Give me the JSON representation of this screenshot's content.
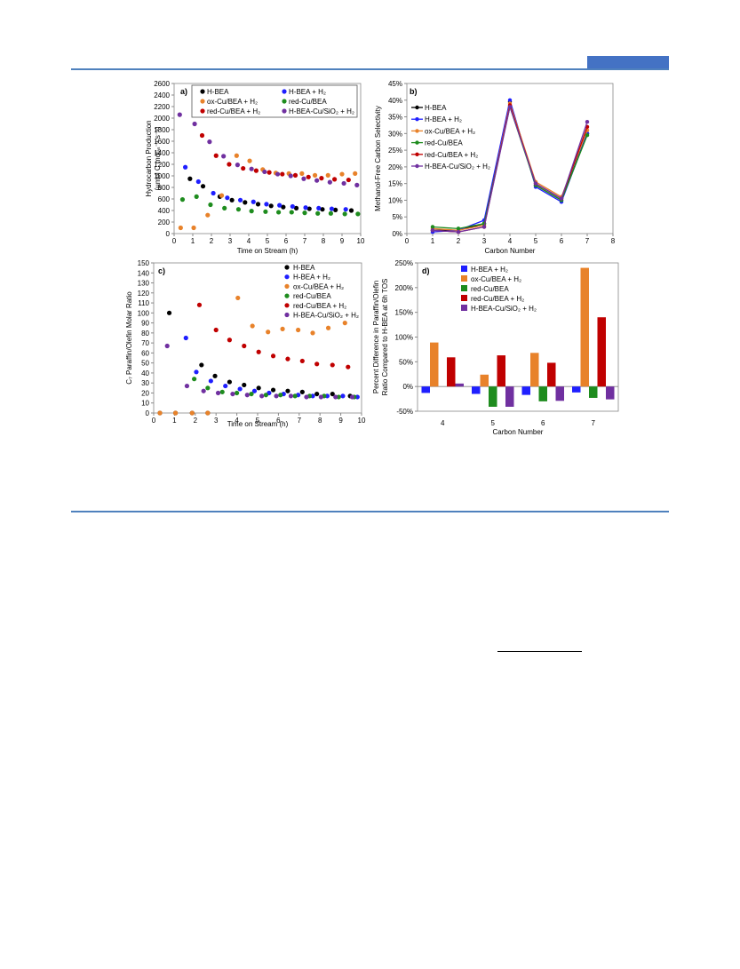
{
  "colors": {
    "H-BEA": "#000000",
    "H-BEA + H2": "#1f1fff",
    "ox-Cu/BEA + H2": "#e8822a",
    "red-Cu/BEA": "#1e8c1e",
    "red-Cu/BEA + H2": "#c00000",
    "H-BEA-Cu/SiO2 + H2": "#7030a0",
    "rule": "#4f81bd",
    "header_block": "#4472c4"
  },
  "legend_labels": {
    "hbea": "H-BEA",
    "hbea_h2": "H-BEA + H₂",
    "ox_h2": "ox-Cu/BEA + H₂",
    "red": "red-Cu/BEA",
    "red_h2": "red-Cu/BEA + H₂",
    "sio2_h2": "H-BEA-Cu/SiO₂ + H₂"
  },
  "chart_data": [
    {
      "panel": "a)",
      "type": "scatter",
      "xlabel": "Time on Stream (h)",
      "ylabel_line1": "Hydrocarbon Production",
      "ylabel_line2": "(µmol C molₐₛ⁻¹ s⁻¹)",
      "xlim": [
        0,
        10
      ],
      "ylim": [
        0,
        2600
      ],
      "xticks": [
        0,
        1,
        2,
        3,
        4,
        5,
        6,
        7,
        8,
        9,
        10
      ],
      "yticks": [
        0,
        200,
        400,
        600,
        800,
        1000,
        1200,
        1400,
        1600,
        1800,
        2000,
        2200,
        2400,
        2600
      ],
      "legend": "top, two columns, boxed",
      "series": [
        {
          "key": "hbea",
          "name": "H-BEA",
          "points": [
            [
              0.85,
              950
            ],
            [
              1.55,
              820
            ],
            [
              2.45,
              640
            ],
            [
              3.1,
              580
            ],
            [
              3.8,
              540
            ],
            [
              4.5,
              510
            ],
            [
              5.2,
              480
            ],
            [
              5.85,
              460
            ],
            [
              6.55,
              440
            ],
            [
              7.25,
              430
            ],
            [
              7.95,
              420
            ],
            [
              8.65,
              410
            ],
            [
              9.5,
              400
            ]
          ]
        },
        {
          "key": "hbea_h2",
          "name": "H-BEA + H₂",
          "points": [
            [
              0.6,
              1150
            ],
            [
              1.3,
              900
            ],
            [
              2.1,
              700
            ],
            [
              2.85,
              620
            ],
            [
              3.55,
              580
            ],
            [
              4.25,
              550
            ],
            [
              4.95,
              510
            ],
            [
              5.65,
              490
            ],
            [
              6.35,
              470
            ],
            [
              7.05,
              450
            ],
            [
              7.75,
              440
            ],
            [
              8.45,
              430
            ],
            [
              9.2,
              420
            ]
          ]
        },
        {
          "key": "ox_h2",
          "name": "ox-Cu/BEA + H₂",
          "points": [
            [
              0.35,
              100
            ],
            [
              1.05,
              100
            ],
            [
              1.8,
              320
            ],
            [
              2.55,
              660
            ],
            [
              3.35,
              1350
            ],
            [
              4.05,
              1260
            ],
            [
              4.75,
              1110
            ],
            [
              5.45,
              1050
            ],
            [
              6.15,
              1040
            ],
            [
              6.85,
              1040
            ],
            [
              7.55,
              1010
            ],
            [
              8.25,
              1010
            ],
            [
              9.0,
              1030
            ],
            [
              9.7,
              1040
            ]
          ]
        },
        {
          "key": "red",
          "name": "red-Cu/BEA",
          "points": [
            [
              0.45,
              590
            ],
            [
              1.2,
              640
            ],
            [
              1.95,
              500
            ],
            [
              2.7,
              440
            ],
            [
              3.45,
              420
            ],
            [
              4.15,
              390
            ],
            [
              4.9,
              380
            ],
            [
              5.6,
              370
            ],
            [
              6.3,
              370
            ],
            [
              7.0,
              360
            ],
            [
              7.7,
              350
            ],
            [
              8.4,
              350
            ],
            [
              9.15,
              340
            ],
            [
              9.85,
              340
            ]
          ]
        },
        {
          "key": "red_h2",
          "name": "red-Cu/BEA + H₂",
          "points": [
            [
              1.5,
              1700
            ],
            [
              2.25,
              1350
            ],
            [
              2.95,
              1200
            ],
            [
              3.7,
              1130
            ],
            [
              4.4,
              1090
            ],
            [
              5.1,
              1060
            ],
            [
              5.8,
              1030
            ],
            [
              6.5,
              1010
            ],
            [
              7.2,
              980
            ],
            [
              7.9,
              960
            ],
            [
              8.6,
              940
            ],
            [
              9.35,
              930
            ]
          ]
        },
        {
          "key": "sio2_h2",
          "name": "H-BEA-Cu/SiO₂ + H₂",
          "points": [
            [
              0.3,
              2060
            ],
            [
              1.1,
              1900
            ],
            [
              1.9,
              1590
            ],
            [
              2.65,
              1340
            ],
            [
              3.4,
              1190
            ],
            [
              4.15,
              1120
            ],
            [
              4.85,
              1070
            ],
            [
              5.55,
              1030
            ],
            [
              6.25,
              1000
            ],
            [
              6.95,
              950
            ],
            [
              7.65,
              920
            ],
            [
              8.35,
              890
            ],
            [
              9.1,
              870
            ],
            [
              9.8,
              840
            ]
          ]
        }
      ]
    },
    {
      "panel": "b)",
      "type": "line",
      "xlabel": "Carbon Number",
      "ylabel": "Methanol-Free Carbon Selectivity",
      "xlim": [
        0,
        8
      ],
      "ylim": [
        0,
        45
      ],
      "xticks": [
        0,
        1,
        2,
        3,
        4,
        5,
        6,
        7,
        8
      ],
      "yticks": [
        "0%",
        "5%",
        "10%",
        "15%",
        "20%",
        "25%",
        "30%",
        "35%",
        "40%",
        "45%"
      ],
      "legend": "top-left",
      "x": [
        1,
        2,
        3,
        4,
        5,
        6,
        7
      ],
      "series": [
        {
          "key": "hbea",
          "name": "H-BEA",
          "values": [
            1.0,
            1.0,
            3.0,
            39.5,
            14.5,
            10.0,
            30.0
          ]
        },
        {
          "key": "hbea_h2",
          "name": "H-BEA + H₂",
          "values": [
            0.5,
            1.0,
            4.0,
            40.0,
            14.0,
            9.5,
            30.0
          ]
        },
        {
          "key": "ox_h2",
          "name": "ox-Cu/BEA + H₂",
          "values": [
            1.5,
            1.0,
            2.5,
            39.0,
            15.5,
            11.0,
            31.0
          ]
        },
        {
          "key": "red",
          "name": "red-Cu/BEA",
          "values": [
            2.0,
            1.5,
            3.0,
            38.0,
            14.5,
            10.0,
            29.5
          ]
        },
        {
          "key": "red_h2",
          "name": "red-Cu/BEA + H₂",
          "values": [
            1.0,
            0.5,
            2.0,
            38.5,
            15.0,
            10.5,
            32.0
          ]
        },
        {
          "key": "sio2_h2",
          "name": "H-BEA-Cu/SiO₂  + H₂",
          "values": [
            1.0,
            0.5,
            2.0,
            38.0,
            15.0,
            10.5,
            33.5
          ]
        }
      ]
    },
    {
      "panel": "c)",
      "type": "scatter",
      "xlabel": "Time on Stream (h)",
      "ylabel": "C₇ Paraffin/Olefin Molar Ratio",
      "xlim": [
        0,
        10
      ],
      "ylim": [
        0,
        150
      ],
      "xticks": [
        0,
        1,
        2,
        3,
        4,
        5,
        6,
        7,
        8,
        9,
        10
      ],
      "yticks": [
        0,
        10,
        20,
        30,
        40,
        50,
        60,
        70,
        80,
        90,
        100,
        110,
        120,
        130,
        140,
        150
      ],
      "legend": "top-right",
      "series": [
        {
          "key": "hbea",
          "name": "H-BEA",
          "points": [
            [
              0.3,
              0
            ],
            [
              1.05,
              0
            ],
            [
              1.85,
              0
            ],
            [
              2.6,
              0
            ],
            [
              0.75,
              100
            ],
            [
              2.3,
              48
            ],
            [
              2.95,
              37
            ],
            [
              3.65,
              31
            ],
            [
              4.35,
              28
            ],
            [
              5.05,
              25
            ],
            [
              5.75,
              23
            ],
            [
              6.45,
              22
            ],
            [
              7.15,
              21
            ],
            [
              7.85,
              19
            ],
            [
              8.6,
              19
            ],
            [
              9.45,
              17
            ]
          ]
        },
        {
          "key": "hbea_h2",
          "name": "H-BEA + H₂",
          "points": [
            [
              1.55,
              75
            ],
            [
              2.05,
              41
            ],
            [
              2.75,
              32
            ],
            [
              3.45,
              27
            ],
            [
              4.15,
              24
            ],
            [
              4.85,
              22
            ],
            [
              5.55,
              20
            ],
            [
              6.25,
              19
            ],
            [
              6.95,
              18
            ],
            [
              7.65,
              17
            ],
            [
              8.35,
              17
            ],
            [
              9.1,
              17
            ],
            [
              9.8,
              16
            ]
          ]
        },
        {
          "key": "ox_h2",
          "name": "ox-Cu/BEA + H₂",
          "points": [
            [
              0.3,
              0
            ],
            [
              1.05,
              0
            ],
            [
              1.85,
              0
            ],
            [
              2.6,
              0
            ],
            [
              4.05,
              115
            ],
            [
              4.75,
              87
            ],
            [
              5.5,
              81
            ],
            [
              6.2,
              84
            ],
            [
              6.95,
              83
            ],
            [
              7.65,
              80
            ],
            [
              8.4,
              85
            ],
            [
              9.2,
              90
            ]
          ]
        },
        {
          "key": "red",
          "name": "red-Cu/BEA",
          "points": [
            [
              1.95,
              34
            ],
            [
              2.6,
              25
            ],
            [
              3.3,
              21
            ],
            [
              4.0,
              20
            ],
            [
              4.7,
              19
            ],
            [
              5.4,
              18
            ],
            [
              6.1,
              18
            ],
            [
              6.8,
              17
            ],
            [
              7.5,
              17
            ],
            [
              8.2,
              17
            ],
            [
              8.9,
              16
            ],
            [
              9.65,
              16
            ]
          ]
        },
        {
          "key": "red_h2",
          "name": "red-Cu/BEA + H₂",
          "points": [
            [
              2.2,
              108
            ],
            [
              3.0,
              83
            ],
            [
              3.65,
              73
            ],
            [
              4.35,
              67
            ],
            [
              5.05,
              61
            ],
            [
              5.75,
              57
            ],
            [
              6.45,
              54
            ],
            [
              7.15,
              52
            ],
            [
              7.85,
              49
            ],
            [
              8.6,
              48
            ],
            [
              9.35,
              46
            ]
          ]
        },
        {
          "key": "sio2_h2",
          "name": "H-BEA-Cu/SiO₂  + H₂",
          "points": [
            [
              0.65,
              67
            ],
            [
              1.6,
              27
            ],
            [
              2.4,
              22
            ],
            [
              3.1,
              20
            ],
            [
              3.8,
              19
            ],
            [
              4.5,
              18
            ],
            [
              5.2,
              17
            ],
            [
              5.9,
              17
            ],
            [
              6.6,
              17
            ],
            [
              7.35,
              16
            ],
            [
              8.05,
              16
            ],
            [
              8.75,
              16
            ],
            [
              9.55,
              16
            ]
          ]
        }
      ]
    },
    {
      "panel": "d)",
      "type": "bar",
      "xlabel": "Carbon Number",
      "ylabel_line1": "Percent Difference in Paraffin/Olefin",
      "ylabel_line2": "Ratio Compared to H-BEA at 6h TOS",
      "ylim": [
        -50,
        250
      ],
      "yticks": [
        "-50%",
        "0%",
        "50%",
        "100%",
        "150%",
        "200%",
        "250%"
      ],
      "legend": "top-left",
      "categories": [
        "4",
        "5",
        "6",
        "7"
      ],
      "series": [
        {
          "key": "hbea_h2",
          "name": "H-BEA + H₂",
          "values": [
            -13,
            -15,
            -17,
            -12
          ]
        },
        {
          "key": "ox_h2",
          "name": "ox-Cu/BEA + H₂",
          "values": [
            89,
            24,
            68,
            240
          ]
        },
        {
          "key": "red",
          "name": "red-Cu/BEA",
          "values": [
            null,
            -41,
            -30,
            -23
          ]
        },
        {
          "key": "red_h2",
          "name": "red-Cu/BEA + H₂",
          "values": [
            59,
            63,
            48,
            140
          ]
        },
        {
          "key": "sio2_h2",
          "name": "H-BEA-Cu/SiO₂ + H₂",
          "values": [
            6,
            -41,
            -29,
            -26
          ]
        }
      ]
    }
  ]
}
